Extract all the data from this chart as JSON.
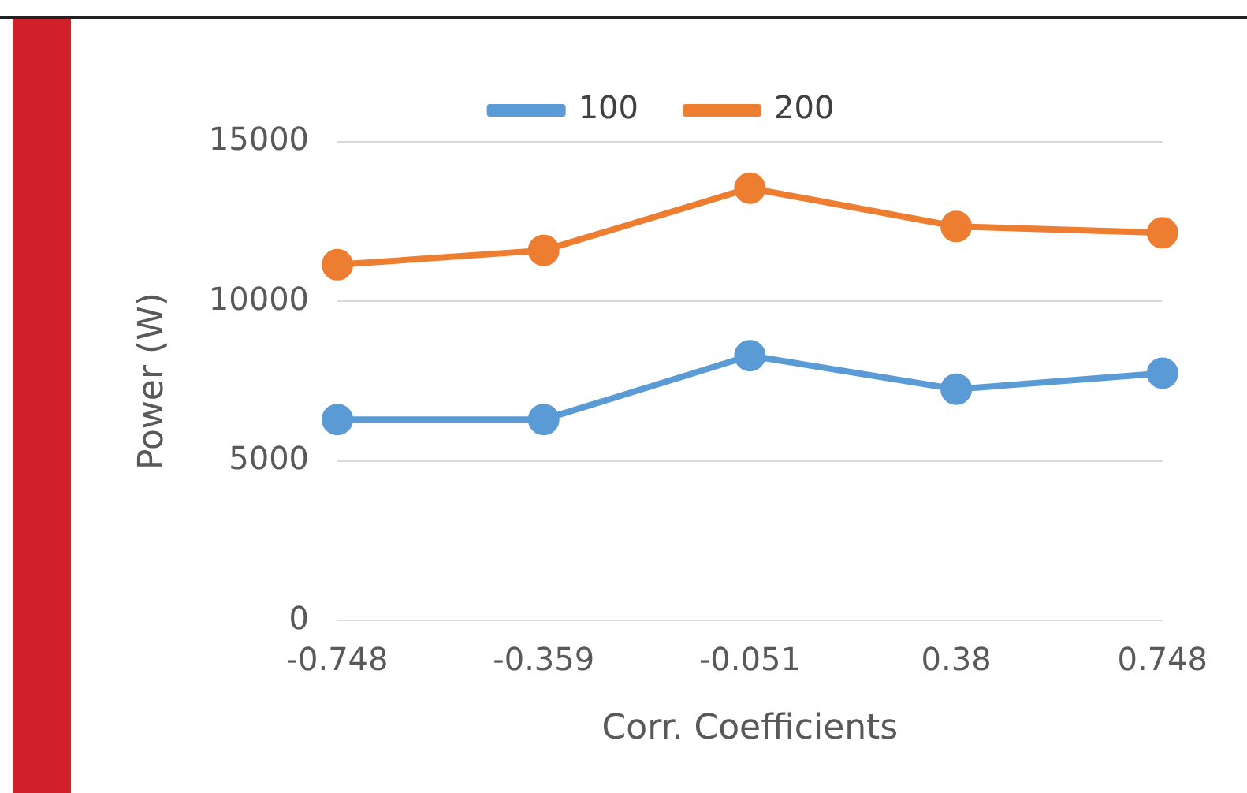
{
  "chart_data": {
    "type": "line",
    "xlabel": "Corr. Coefficients",
    "ylabel": "Power (W)",
    "categories": [
      "-0.748",
      "-0.359",
      "-0.051",
      "0.38",
      "0.748"
    ],
    "series": [
      {
        "name": "100",
        "color": "#5b9bd5",
        "values": [
          6300,
          6300,
          8300,
          7250,
          7750
        ]
      },
      {
        "name": "200",
        "color": "#ed7d31",
        "values": [
          11150,
          11600,
          13550,
          12350,
          12150
        ]
      }
    ],
    "ylim": [
      0,
      15000
    ],
    "yticks": [
      0,
      5000,
      10000,
      15000
    ],
    "grid": "y",
    "legend": "top",
    "marker": "circle",
    "line_style": "solid"
  }
}
